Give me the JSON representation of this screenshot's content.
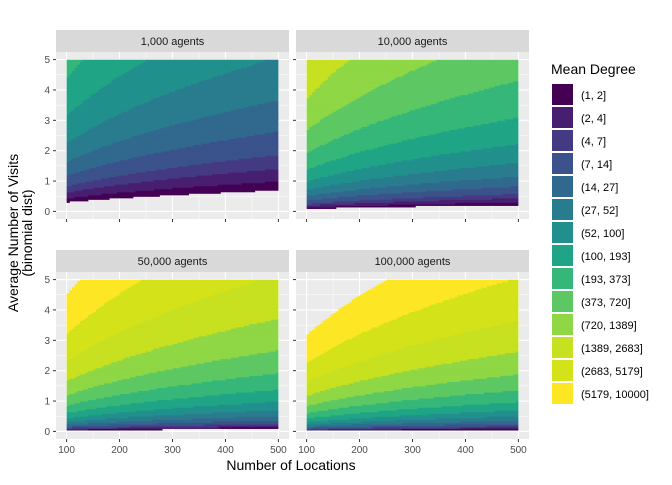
{
  "chart_data": {
    "type": "heatmap",
    "subtype": "filled-contour facets",
    "xlabel": "Number of Locations",
    "ylabel": "Average Number of Visits",
    "ylabel_sub": "(binomial dist)",
    "x_ticks": [
      100,
      200,
      300,
      400,
      500
    ],
    "y_ticks": [
      0,
      1,
      2,
      3,
      4,
      5
    ],
    "xlim": [
      100,
      500
    ],
    "ylim": [
      0,
      5
    ],
    "grid": true,
    "legend": {
      "title": "Mean Degree",
      "placement": "right",
      "bins": [
        {
          "label": "(1, 2]",
          "lo": 1,
          "hi": 2,
          "color": "#440154"
        },
        {
          "label": "(2, 4]",
          "lo": 2,
          "hi": 4,
          "color": "#481F70"
        },
        {
          "label": "(4, 7]",
          "lo": 4,
          "hi": 7,
          "color": "#443A83"
        },
        {
          "label": "(7, 14]",
          "lo": 7,
          "hi": 14,
          "color": "#3B528B"
        },
        {
          "label": "(14, 27]",
          "lo": 14,
          "hi": 27,
          "color": "#31688E"
        },
        {
          "label": "(27, 52]",
          "lo": 27,
          "hi": 52,
          "color": "#287C8E"
        },
        {
          "label": "(52, 100]",
          "lo": 52,
          "hi": 100,
          "color": "#21908C"
        },
        {
          "label": "(100, 193]",
          "lo": 100,
          "hi": 193,
          "color": "#20A486"
        },
        {
          "label": "(193, 373]",
          "lo": 193,
          "hi": 373,
          "color": "#35B779"
        },
        {
          "label": "(373, 720]",
          "lo": 373,
          "hi": 720,
          "color": "#5DC863"
        },
        {
          "label": "(720, 1389]",
          "lo": 720,
          "hi": 1389,
          "color": "#8FD744"
        },
        {
          "label": "(1389, 2683]",
          "lo": 1389,
          "hi": 2683,
          "color": "#C7E020"
        },
        {
          "label": "(2683, 5179]",
          "lo": 2683,
          "hi": 5179,
          "color": "#D4E21A"
        },
        {
          "label": "(5179, 10000]",
          "lo": 5179,
          "hi": 10000,
          "color": "#FDE725"
        }
      ]
    },
    "model": "mean_degree ≈ agents × visits² / locations, capped at 10000; values ≤ 1 not shown",
    "panels": [
      {
        "title": "1,000  agents",
        "agents": 1000
      },
      {
        "title": "10,000  agents",
        "agents": 10000
      },
      {
        "title": "50,000  agents",
        "agents": 50000
      },
      {
        "title": "100,000  agents",
        "agents": 100000
      }
    ]
  }
}
